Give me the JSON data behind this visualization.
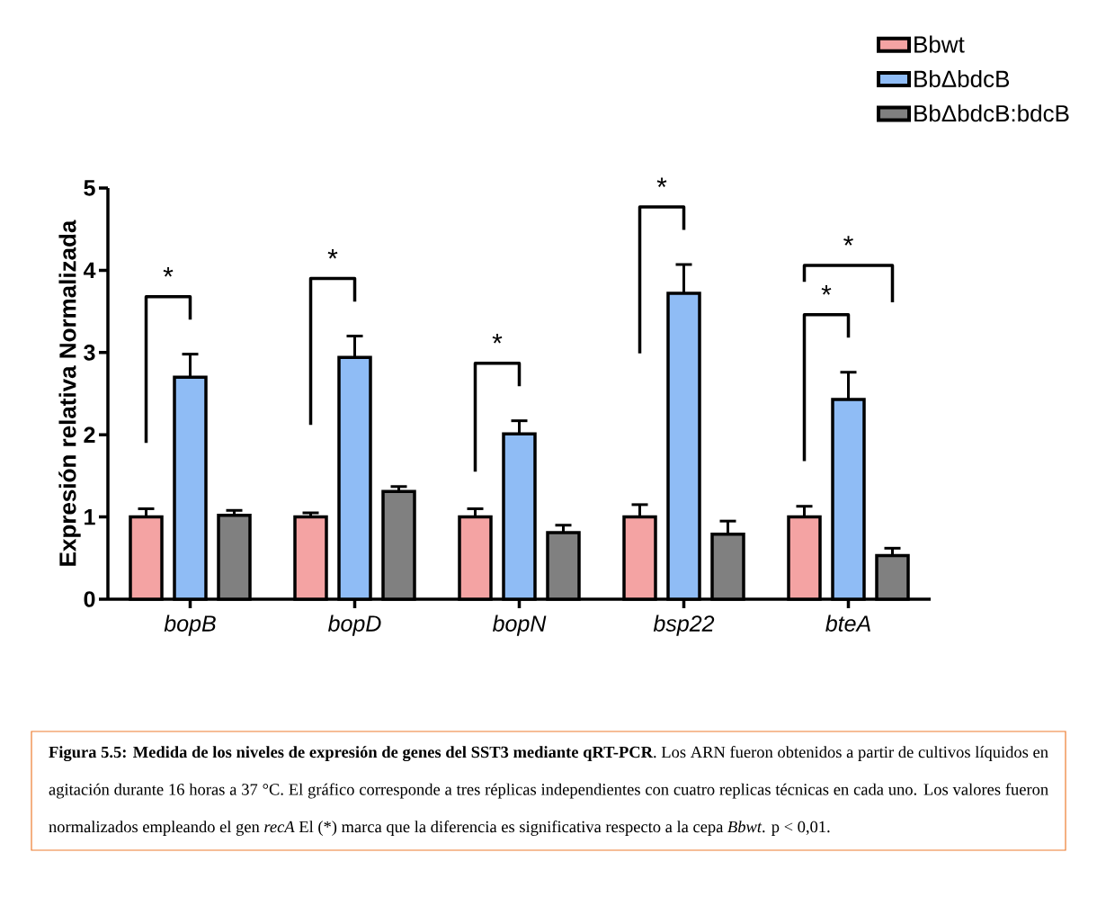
{
  "chart_data": {
    "type": "bar",
    "ylabel": "Expresión relativa Normalizada",
    "categories": [
      "bopB",
      "bopD",
      "bopN",
      "bsp22",
      "bteA"
    ],
    "series": [
      {
        "name": "Bbwt",
        "color": "#f4a3a3",
        "values": [
          1.0,
          1.0,
          1.0,
          1.0,
          1.0
        ],
        "errors": [
          0.1,
          0.05,
          0.1,
          0.15,
          0.13
        ]
      },
      {
        "name": "BbΔbdcB",
        "color": "#8fbcf5",
        "values": [
          2.7,
          2.94,
          2.01,
          3.72,
          2.43
        ],
        "errors": [
          0.28,
          0.26,
          0.16,
          0.35,
          0.33
        ]
      },
      {
        "name": "BbΔbdcB:bdcB",
        "color": "#808080",
        "values": [
          1.02,
          1.31,
          0.81,
          0.79,
          0.53
        ],
        "errors": [
          0.06,
          0.06,
          0.09,
          0.16,
          0.09
        ]
      }
    ],
    "ylim": [
      0,
      5
    ],
    "yticks": [
      0,
      1,
      2,
      3,
      4,
      5
    ],
    "legend": "top right",
    "annotations": [
      "*",
      "*",
      "*",
      "*",
      "*",
      "*",
      "**Figura 5.5: Medida de los niveles de expresión de genes del SST3 mediante qRT-PCR**. Los ARN fueron obtenidos a partir de cultivos líquidos en agitación durante 16 horas a 37 °C. El gráfico corresponde a tres réplicas independientes con cuatro replicas técnicas en cada uno. Los valores fueron normalizados empleando el gen *recA* El",
      "(*) marca que la diferencia es significativa respecto a la cepa",
      "*Bbwt*. p < 0,01."
    ]
  }
}
